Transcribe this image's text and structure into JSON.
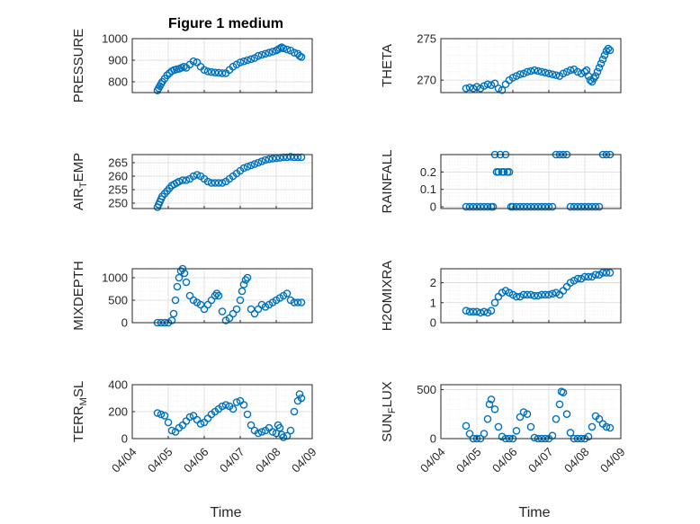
{
  "figure": {
    "title": "Figure 1 medium",
    "xlabel": "Time"
  },
  "colors": {
    "marker": "#0072BD",
    "axis": "#262626",
    "grid": "#D9D9D9",
    "minor_grid": "#EEEEEE"
  },
  "x_ticks": [
    "04/04",
    "04/05",
    "04/06",
    "04/07",
    "04/08",
    "04/09"
  ],
  "chart_data": [
    {
      "type": "scatter",
      "title": "Figure 1 medium",
      "ylabel": "PRESSURE",
      "ylim": [
        750,
        1000
      ],
      "yticks": [
        800,
        900,
        1000
      ],
      "grid": true,
      "x": [
        "04/04 16:48",
        "04/04 17:36",
        "04/04 18:24",
        "04/04 19:12",
        "04/04 20:00",
        "04/04 21:36",
        "04/04 23:12",
        "04/05 00:48",
        "04/05 02:24",
        "04/05 04:00",
        "04/05 05:36",
        "04/05 07:12",
        "04/05 08:48",
        "04/05 10:24",
        "04/05 12:00",
        "04/05 14:24",
        "04/05 16:48",
        "04/05 19:12",
        "04/05 21:36",
        "04/06 00:00",
        "04/06 02:24",
        "04/06 04:48",
        "04/06 07:12",
        "04/06 09:36",
        "04/06 12:00",
        "04/06 14:24",
        "04/06 16:48",
        "04/06 19:12",
        "04/06 21:36",
        "04/07 00:00",
        "04/07 02:24",
        "04/07 04:48",
        "04/07 07:12",
        "04/07 09:36",
        "04/07 12:00",
        "04/07 14:24",
        "04/07 16:48",
        "04/07 19:12",
        "04/07 21:36",
        "04/08 00:00",
        "04/08 01:12",
        "04/08 02:24",
        "04/08 03:36",
        "04/08 04:48",
        "04/08 07:12",
        "04/08 09:36",
        "04/08 12:00",
        "04/08 14:24",
        "04/08 15:36",
        "04/08 16:48"
      ],
      "y": [
        760,
        770,
        780,
        790,
        800,
        815,
        830,
        840,
        850,
        855,
        858,
        860,
        865,
        870,
        865,
        880,
        895,
        890,
        870,
        855,
        848,
        845,
        843,
        842,
        840,
        840,
        855,
        870,
        880,
        890,
        895,
        900,
        905,
        910,
        920,
        925,
        930,
        935,
        940,
        945,
        950,
        955,
        960,
        955,
        950,
        945,
        935,
        930,
        920,
        915
      ]
    },
    {
      "type": "scatter",
      "ylabel": "THETA",
      "ylim": [
        268.5,
        275
      ],
      "yticks": [
        270,
        275
      ],
      "grid": true,
      "x": [
        "04/04 16:48",
        "04/04 19:12",
        "04/04 21:36",
        "04/05 00:00",
        "04/05 02:24",
        "04/05 04:48",
        "04/05 07:12",
        "04/05 09:36",
        "04/05 12:00",
        "04/05 14:24",
        "04/05 16:48",
        "04/05 19:12",
        "04/05 21:36",
        "04/06 00:00",
        "04/06 02:24",
        "04/06 04:48",
        "04/06 07:12",
        "04/06 09:36",
        "04/06 12:00",
        "04/06 14:24",
        "04/06 16:48",
        "04/06 19:12",
        "04/06 21:36",
        "04/07 00:00",
        "04/07 02:24",
        "04/07 04:48",
        "04/07 07:12",
        "04/07 09:36",
        "04/07 12:00",
        "04/07 14:24",
        "04/07 16:48",
        "04/07 19:12",
        "04/07 21:36",
        "04/08 00:00",
        "04/08 01:12",
        "04/08 02:24",
        "04/08 03:36",
        "04/08 04:48",
        "04/08 06:00",
        "04/08 07:12",
        "04/08 08:24",
        "04/08 09:36",
        "04/08 10:48",
        "04/08 12:00",
        "04/08 13:12",
        "04/08 14:24",
        "04/08 15:36",
        "04/08 16:48"
      ],
      "y": [
        269,
        269.1,
        269,
        269.2,
        269,
        269.3,
        269.5,
        269.4,
        269.6,
        269,
        268.8,
        269.5,
        270,
        270.3,
        270.5,
        270.7,
        270.8,
        271,
        271.1,
        271.2,
        271.1,
        271,
        270.9,
        270.8,
        270.7,
        270.6,
        270.5,
        270.8,
        271,
        271.2,
        271.3,
        271,
        270.8,
        271,
        271.2,
        270.5,
        270,
        269.8,
        270.2,
        270.5,
        271,
        271.5,
        272,
        272.5,
        273,
        273.5,
        273.8,
        273.6
      ]
    },
    {
      "type": "scatter",
      "ylabel": "AIR_TEMP",
      "ylim": [
        248,
        268
      ],
      "yticks": [
        250,
        255,
        260,
        265
      ],
      "grid": true,
      "x": [
        "04/04 16:48",
        "04/04 17:36",
        "04/04 18:24",
        "04/04 19:12",
        "04/04 20:00",
        "04/04 21:36",
        "04/04 23:12",
        "04/05 00:48",
        "04/05 02:24",
        "04/05 04:00",
        "04/05 05:36",
        "04/05 07:12",
        "04/05 09:36",
        "04/05 12:00",
        "04/05 14:24",
        "04/05 16:48",
        "04/05 19:12",
        "04/05 21:36",
        "04/06 00:00",
        "04/06 02:24",
        "04/06 04:48",
        "04/06 07:12",
        "04/06 09:36",
        "04/06 12:00",
        "04/06 14:24",
        "04/06 16:48",
        "04/06 19:12",
        "04/06 21:36",
        "04/07 00:00",
        "04/07 02:24",
        "04/07 04:48",
        "04/07 07:12",
        "04/07 09:36",
        "04/07 12:00",
        "04/07 14:24",
        "04/07 16:48",
        "04/07 19:12",
        "04/07 21:36",
        "04/08 00:00",
        "04/08 02:24",
        "04/08 04:48",
        "04/08 07:12",
        "04/08 09:36",
        "04/08 12:00",
        "04/08 14:24",
        "04/08 16:48"
      ],
      "y": [
        248.5,
        249.5,
        250.5,
        251.5,
        252.5,
        253.5,
        254.5,
        255.5,
        256.5,
        257,
        257.5,
        258,
        258.5,
        258.5,
        259,
        260,
        260.5,
        260,
        259,
        258,
        257.5,
        257.5,
        257.5,
        257.5,
        258,
        259,
        260,
        261,
        262,
        263,
        263.5,
        264,
        264.5,
        265,
        265.5,
        266,
        266.3,
        266.5,
        266.7,
        266.8,
        267,
        267,
        267.2,
        267,
        267,
        267
      ]
    },
    {
      "type": "scatter",
      "ylabel": "RAINFALL",
      "ylim": [
        -0.01,
        0.3
      ],
      "yticks": [
        0,
        0.1,
        0.2
      ],
      "grid": true,
      "x": [
        "04/04 16:48",
        "04/04 19:12",
        "04/04 21:36",
        "04/05 00:00",
        "04/05 02:24",
        "04/05 04:48",
        "04/05 07:12",
        "04/05 09:36",
        "04/05 10:48",
        "04/05 12:00",
        "04/05 13:12",
        "04/05 14:24",
        "04/05 15:36",
        "04/05 16:48",
        "04/05 18:00",
        "04/05 19:12",
        "04/05 20:24",
        "04/05 21:36",
        "04/05 22:48",
        "04/06 00:00",
        "04/06 02:24",
        "04/06 04:48",
        "04/06 07:12",
        "04/06 09:36",
        "04/06 12:00",
        "04/06 14:24",
        "04/06 16:48",
        "04/06 19:12",
        "04/06 21:36",
        "04/07 00:00",
        "04/07 02:24",
        "04/07 04:48",
        "04/07 07:12",
        "04/07 09:36",
        "04/07 12:00",
        "04/07 14:24",
        "04/07 16:48",
        "04/07 19:12",
        "04/07 21:36",
        "04/08 00:00",
        "04/08 02:24",
        "04/08 04:48",
        "04/08 07:12",
        "04/08 09:36",
        "04/08 12:00",
        "04/08 14:24",
        "04/08 16:48"
      ],
      "y": [
        0,
        0,
        0,
        0,
        0,
        0,
        0,
        0,
        0,
        0.3,
        0.2,
        0.2,
        0.3,
        0.2,
        0.2,
        0.3,
        0.2,
        0.2,
        0,
        0,
        0,
        0,
        0,
        0,
        0,
        0,
        0,
        0,
        0,
        0,
        0,
        0.3,
        0.3,
        0.3,
        0.3,
        0,
        0,
        0,
        0,
        0,
        0,
        0,
        0,
        0,
        0.3,
        0.3,
        0.3
      ]
    },
    {
      "type": "scatter",
      "ylabel": "MIXDEPTH",
      "ylim": [
        0,
        1200
      ],
      "yticks": [
        0,
        500,
        1000
      ],
      "grid": true,
      "x": [
        "04/04 16:48",
        "04/04 19:12",
        "04/04 21:36",
        "04/05 00:00",
        "04/05 02:24",
        "04/05 03:36",
        "04/05 04:48",
        "04/05 06:00",
        "04/05 07:12",
        "04/05 08:24",
        "04/05 09:36",
        "04/05 10:48",
        "04/05 12:00",
        "04/05 14:24",
        "04/05 16:48",
        "04/05 19:12",
        "04/05 21:36",
        "04/06 00:00",
        "04/06 02:24",
        "04/06 04:48",
        "04/06 07:12",
        "04/06 08:24",
        "04/06 09:36",
        "04/06 12:00",
        "04/06 14:24",
        "04/06 16:48",
        "04/06 19:12",
        "04/06 21:36",
        "04/07 00:00",
        "04/07 01:12",
        "04/07 02:24",
        "04/07 03:36",
        "04/07 04:48",
        "04/07 07:12",
        "04/07 09:36",
        "04/07 12:00",
        "04/07 14:24",
        "04/07 16:48",
        "04/07 19:12",
        "04/07 21:36",
        "04/08 00:00",
        "04/08 02:24",
        "04/08 04:48",
        "04/08 07:12",
        "04/08 09:36",
        "04/08 12:00",
        "04/08 14:24",
        "04/08 16:48"
      ],
      "y": [
        0,
        0,
        0,
        0,
        50,
        200,
        500,
        800,
        1000,
        1150,
        1200,
        1100,
        900,
        600,
        500,
        450,
        400,
        300,
        400,
        500,
        600,
        650,
        600,
        250,
        50,
        100,
        200,
        300,
        500,
        700,
        850,
        950,
        1000,
        300,
        200,
        300,
        400,
        350,
        400,
        450,
        500,
        550,
        600,
        650,
        500,
        450,
        450,
        450
      ]
    },
    {
      "type": "scatter",
      "ylabel": "H2OMIXRA",
      "ylim": [
        0,
        2.7
      ],
      "yticks": [
        0,
        1,
        2
      ],
      "grid": true,
      "x": [
        "04/04 16:48",
        "04/04 19:12",
        "04/04 21:36",
        "04/05 00:00",
        "04/05 02:24",
        "04/05 04:48",
        "04/05 07:12",
        "04/05 09:36",
        "04/05 12:00",
        "04/05 14:24",
        "04/05 16:48",
        "04/05 19:12",
        "04/05 21:36",
        "04/06 00:00",
        "04/06 02:24",
        "04/06 04:48",
        "04/06 07:12",
        "04/06 09:36",
        "04/06 12:00",
        "04/06 14:24",
        "04/06 16:48",
        "04/06 19:12",
        "04/06 21:36",
        "04/07 00:00",
        "04/07 02:24",
        "04/07 04:48",
        "04/07 07:12",
        "04/07 09:36",
        "04/07 12:00",
        "04/07 14:24",
        "04/07 16:48",
        "04/07 19:12",
        "04/07 21:36",
        "04/08 00:00",
        "04/08 02:24",
        "04/08 04:48",
        "04/08 07:12",
        "04/08 09:36",
        "04/08 12:00",
        "04/08 14:24",
        "04/08 16:48"
      ],
      "y": [
        0.6,
        0.55,
        0.55,
        0.55,
        0.5,
        0.55,
        0.5,
        0.6,
        1.0,
        1.3,
        1.5,
        1.6,
        1.5,
        1.4,
        1.3,
        1.3,
        1.4,
        1.4,
        1.4,
        1.35,
        1.35,
        1.4,
        1.4,
        1.4,
        1.45,
        1.5,
        1.4,
        1.6,
        1.8,
        2.0,
        2.1,
        2.2,
        2.2,
        2.3,
        2.3,
        2.3,
        2.4,
        2.4,
        2.5,
        2.5,
        2.5
      ]
    },
    {
      "type": "scatter",
      "ylabel": "TERR_MSL",
      "ylim": [
        0,
        400
      ],
      "yticks": [
        0,
        200,
        400
      ],
      "grid": true,
      "x": [
        "04/04 16:48",
        "04/04 19:12",
        "04/04 21:36",
        "04/05 00:00",
        "04/05 02:24",
        "04/05 04:48",
        "04/05 07:12",
        "04/05 09:36",
        "04/05 12:00",
        "04/05 14:24",
        "04/05 16:48",
        "04/05 19:12",
        "04/05 21:36",
        "04/06 00:00",
        "04/06 02:24",
        "04/06 04:48",
        "04/06 07:12",
        "04/06 09:36",
        "04/06 12:00",
        "04/06 14:24",
        "04/06 16:48",
        "04/06 19:12",
        "04/06 21:36",
        "04/07 00:00",
        "04/07 02:24",
        "04/07 04:48",
        "04/07 07:12",
        "04/07 09:36",
        "04/07 12:00",
        "04/07 14:24",
        "04/07 16:48",
        "04/07 19:12",
        "04/07 21:36",
        "04/08 00:00",
        "04/08 01:12",
        "04/08 02:24",
        "04/08 03:36",
        "04/08 04:48",
        "04/08 07:12",
        "04/08 09:36",
        "04/08 12:00",
        "04/08 14:24",
        "04/08 15:36",
        "04/08 16:48"
      ],
      "y": [
        190,
        180,
        170,
        120,
        60,
        50,
        80,
        100,
        130,
        160,
        170,
        140,
        110,
        120,
        150,
        180,
        200,
        220,
        240,
        250,
        240,
        220,
        270,
        280,
        250,
        180,
        100,
        60,
        40,
        50,
        60,
        80,
        50,
        40,
        100,
        80,
        30,
        10,
        20,
        60,
        200,
        280,
        330,
        300
      ]
    },
    {
      "type": "scatter",
      "ylabel": "SUN_FLUX",
      "ylim": [
        0,
        550
      ],
      "yticks": [
        0,
        500
      ],
      "grid": true,
      "x": [
        "04/04 16:48",
        "04/04 19:12",
        "04/04 21:36",
        "04/05 00:00",
        "04/05 02:24",
        "04/05 04:48",
        "04/05 07:12",
        "04/05 08:24",
        "04/05 09:36",
        "04/05 12:00",
        "04/05 14:24",
        "04/05 16:48",
        "04/05 19:12",
        "04/05 21:36",
        "04/06 00:00",
        "04/06 02:24",
        "04/06 04:48",
        "04/06 07:12",
        "04/06 09:36",
        "04/06 12:00",
        "04/06 14:24",
        "04/06 16:48",
        "04/06 19:12",
        "04/06 21:36",
        "04/07 00:00",
        "04/07 02:24",
        "04/07 04:48",
        "04/07 07:12",
        "04/07 08:24",
        "04/07 09:36",
        "04/07 12:00",
        "04/07 14:24",
        "04/07 16:48",
        "04/07 19:12",
        "04/07 21:36",
        "04/08 00:00",
        "04/08 02:24",
        "04/08 04:48",
        "04/08 07:12",
        "04/08 09:36",
        "04/08 12:00",
        "04/08 14:24",
        "04/08 16:48"
      ],
      "y": [
        130,
        50,
        0,
        0,
        0,
        50,
        200,
        350,
        400,
        300,
        120,
        20,
        0,
        0,
        0,
        80,
        220,
        270,
        250,
        120,
        10,
        0,
        0,
        0,
        0,
        30,
        200,
        350,
        480,
        470,
        250,
        60,
        0,
        0,
        0,
        0,
        20,
        120,
        230,
        200,
        150,
        120,
        110
      ]
    }
  ]
}
